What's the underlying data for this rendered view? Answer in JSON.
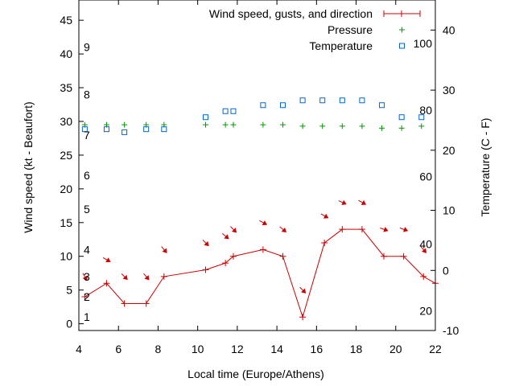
{
  "chart_data": {
    "type": "line",
    "xlabel": "Local time (Europe/Athens)",
    "ylabel_left": "Wind speed (kt - Beaufort)",
    "ylabel_right": "Temperature (C - F)",
    "x_range": [
      4,
      22
    ],
    "y_left_range": [
      -1,
      48
    ],
    "y_right_range": [
      -10,
      45
    ],
    "x_ticks": [
      4,
      6,
      8,
      10,
      12,
      14,
      16,
      18,
      20,
      22
    ],
    "y_left_ticks": [
      0,
      5,
      10,
      15,
      20,
      25,
      30,
      35,
      40,
      45
    ],
    "y_right_ticks": [
      -10,
      0,
      10,
      20,
      30,
      40
    ],
    "beaufort_labels": [
      {
        "label": "1",
        "y": 1
      },
      {
        "label": "2",
        "y": 4
      },
      {
        "label": "3",
        "y": 7
      },
      {
        "label": "4",
        "y": 11
      },
      {
        "label": "5",
        "y": 17
      },
      {
        "label": "6",
        "y": 22
      },
      {
        "label": "7",
        "y": 28
      },
      {
        "label": "8",
        "y": 34
      },
      {
        "label": "9",
        "y": 41
      }
    ],
    "fahrenheit_labels": [
      {
        "label": "20",
        "t": -6.7
      },
      {
        "label": "40",
        "t": 4.4
      },
      {
        "label": "60",
        "t": 15.6
      },
      {
        "label": "80",
        "t": 26.7
      },
      {
        "label": "100",
        "t": 37.8
      }
    ],
    "legend": {
      "wind": "Wind speed, gusts, and direction",
      "pressure": "Pressure",
      "temperature": "Temperature"
    },
    "colors": {
      "wind": "#cc0000",
      "pressure": "#009900",
      "temperature": "#0066cc"
    },
    "wind": {
      "x": [
        4.3,
        5.4,
        6.3,
        7.4,
        8.3,
        10.4,
        11.4,
        11.8,
        13.3,
        14.3,
        15.3,
        16.4,
        17.3,
        18.3,
        19.4,
        20.4,
        21.4,
        22.0
      ],
      "speed": [
        4,
        6,
        3,
        3,
        7,
        8,
        9,
        10,
        11,
        10,
        1,
        12,
        14,
        14,
        10,
        10,
        7,
        6
      ]
    },
    "wind_arrows": {
      "x": [
        4.3,
        5.4,
        6.3,
        7.4,
        8.3,
        10.4,
        11.4,
        11.8,
        13.3,
        14.3,
        15.3,
        16.4,
        17.3,
        18.3,
        19.4,
        20.4,
        21.4
      ],
      "y": [
        7,
        9.5,
        7,
        7,
        11,
        12,
        13,
        14,
        15,
        14,
        5,
        16,
        18,
        18,
        14,
        14,
        11
      ],
      "direction_deg": [
        330,
        300,
        315,
        320,
        320,
        315,
        310,
        315,
        300,
        310,
        315,
        300,
        295,
        300,
        290,
        290,
        320
      ]
    },
    "pressure": {
      "x": [
        4.3,
        5.4,
        6.3,
        7.4,
        8.3,
        10.4,
        11.4,
        11.8,
        13.3,
        14.3,
        15.3,
        16.3,
        17.3,
        18.3,
        19.3,
        20.3,
        21.3
      ],
      "y": [
        29.5,
        29.5,
        29.5,
        29.5,
        29.5,
        29.5,
        29.5,
        29.5,
        29.5,
        29.5,
        29.3,
        29.3,
        29.3,
        29.3,
        29.0,
        29.0,
        29.3
      ]
    },
    "temperature": {
      "x": [
        4.3,
        5.4,
        6.3,
        7.4,
        8.3,
        10.4,
        11.4,
        11.8,
        13.3,
        14.3,
        15.3,
        16.3,
        17.3,
        18.3,
        19.3,
        20.3,
        21.3
      ],
      "t": [
        23.5,
        23.5,
        23.0,
        23.5,
        23.5,
        25.5,
        26.5,
        26.5,
        27.5,
        27.5,
        28.3,
        28.3,
        28.3,
        28.3,
        27.5,
        25.5,
        25.5
      ]
    }
  }
}
